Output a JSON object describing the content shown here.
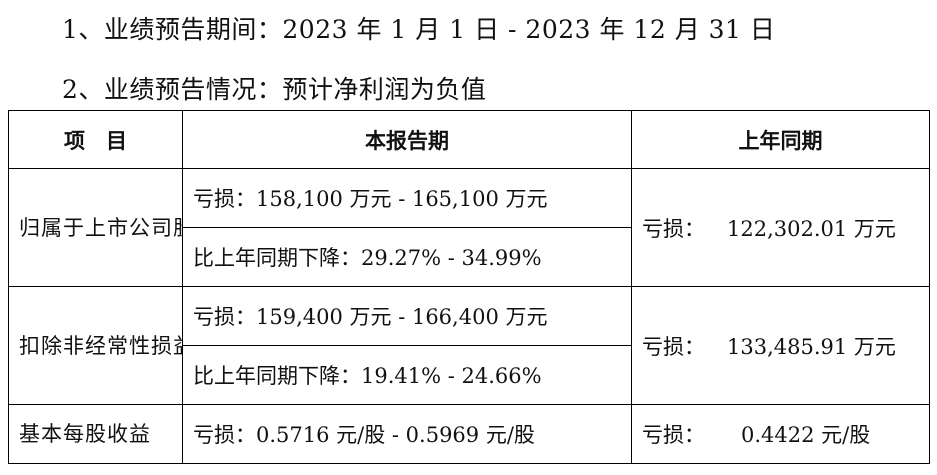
{
  "intro": {
    "period_line": "1、业绩预告期间：2023 年 1 月 1 日 - 2023 年 12 月 31 日",
    "situation_line": "2、业绩预告情况：预计净利润为负值"
  },
  "table": {
    "headers": {
      "item": "项　目",
      "current": "本报告期",
      "previous": "上年同期"
    },
    "rows": {
      "net_profit": {
        "label": "归属于上市公司股东的净利润",
        "current_loss": "亏损：158,100 万元 - 165,100 万元",
        "current_change": "比上年同期下降：29.27% - 34.99%",
        "previous_prefix": "亏损：",
        "previous_value": "122,302.01 万元"
      },
      "deducted_net_profit": {
        "label": "扣除非经常性损益后的净利润",
        "current_loss": "亏损：159,400 万元 - 166,400 万元",
        "current_change": "比上年同期下降：19.41% - 24.66%",
        "previous_prefix": "亏损：",
        "previous_value": "133,485.91 万元"
      },
      "eps": {
        "label": "基本每股收益",
        "current_loss": "亏损：0.5716 元/股 - 0.5969 元/股",
        "previous_prefix": "亏损：",
        "previous_value": "0.4422 元/股"
      }
    }
  }
}
